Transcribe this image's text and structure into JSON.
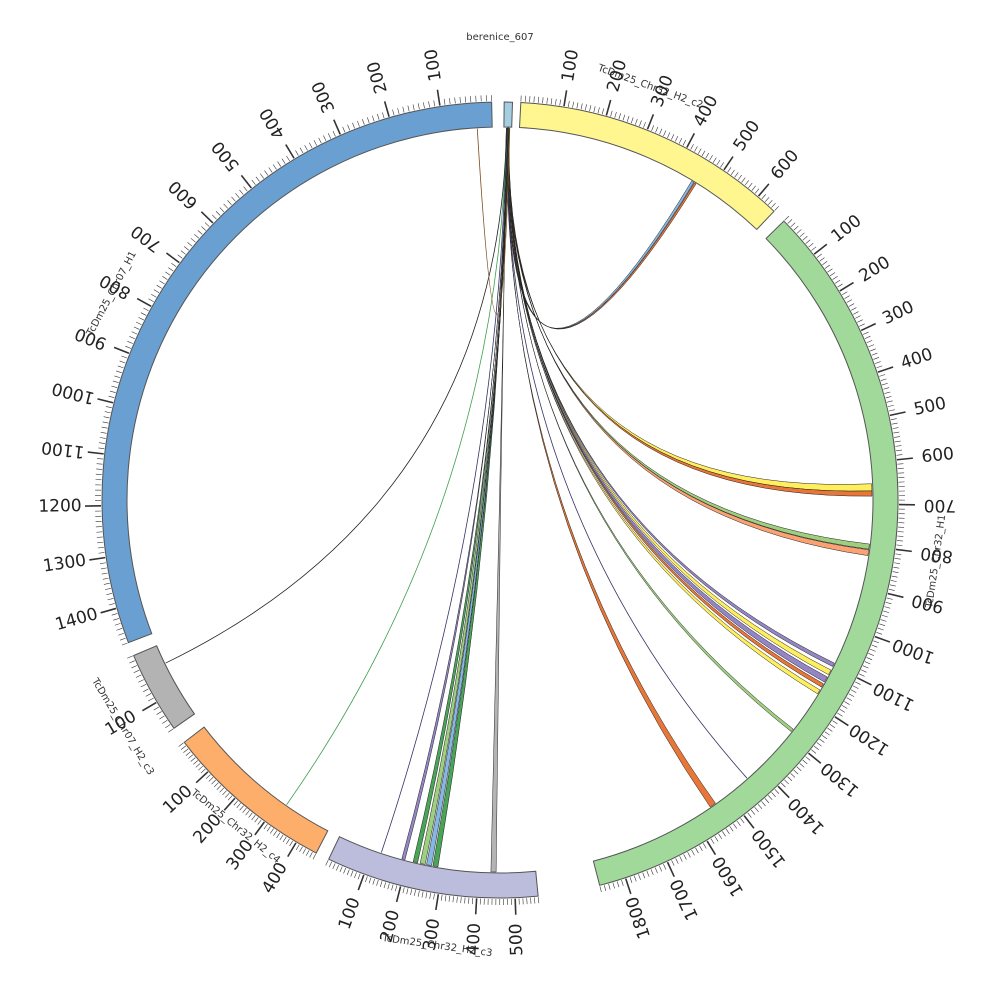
{
  "segments": [
    {
      "name": "berenice_607",
      "color": "#a6cee3"
    },
    {
      "name": "TcDm25_Chr32_H2_c2",
      "color": "#fff68f"
    },
    {
      "name": "TcDm25_Chr32_H1",
      "color": "#a1d99b"
    },
    {
      "name": "TcDm25_Chr32_H2_c3",
      "color": "#bcbddc"
    },
    {
      "name": "TcDm25_Chr32_H2_c4",
      "color": "#fdae6b"
    },
    {
      "name": "TcDm25_Chr07_H2_c3",
      "color": "#b3b3b3"
    },
    {
      "name": "TcDm25_Chr07_H1",
      "color": "#6a9fd1"
    }
  ],
  "tick_labels": {
    "TcDm25_Chr32_H2_c2": [
      "100",
      "200",
      "300",
      "400",
      "500",
      "600"
    ],
    "TcDm25_Chr32_H1": [
      "100",
      "200",
      "300",
      "400",
      "500",
      "600",
      "700",
      "800",
      "900",
      "1000",
      "1100",
      "1200",
      "1300",
      "1400",
      "1500",
      "1600",
      "1700",
      "1800"
    ],
    "TcDm25_Chr32_H2_c3": [
      "100",
      "200",
      "300",
      "400",
      "500"
    ],
    "TcDm25_Chr32_H2_c4": [
      "100",
      "200",
      "300",
      "400"
    ],
    "TcDm25_Chr07_H2_c3": [
      "100"
    ],
    "TcDm25_Chr07_H1": [
      "100",
      "200",
      "300",
      "400",
      "500",
      "600",
      "700",
      "800",
      "900",
      "1000",
      "1100",
      "1200",
      "1300",
      "1400"
    ]
  },
  "link_colors": {
    "orange": "#e66f2d",
    "yellow": "#ffee55",
    "purple": "#8e7fc2",
    "blue": "#7fb3e0",
    "green": "#3f9f4f",
    "lightgreen": "#99cc77",
    "salmon": "#fc9d6a",
    "dark": "#333366"
  }
}
